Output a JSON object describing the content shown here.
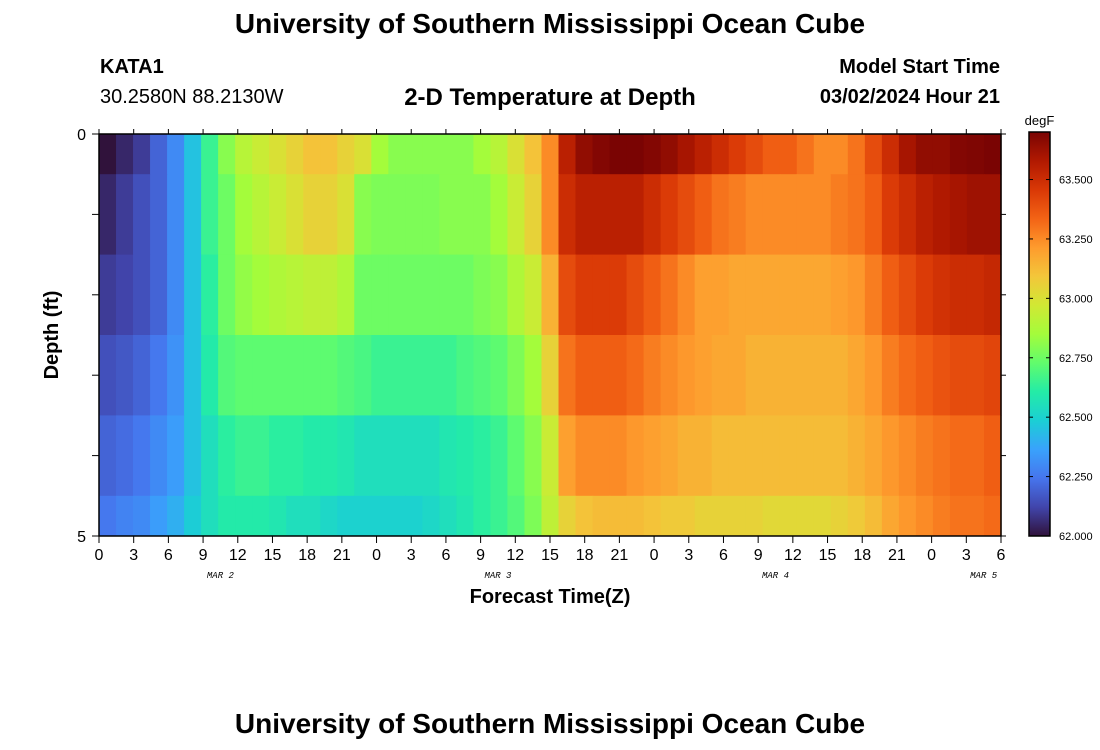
{
  "header": {
    "title": "University of Southern Mississippi Ocean Cube",
    "station": "KATA1",
    "coordinates": "30.2580N  88.2130W",
    "chart_title": "2-D Temperature at Depth",
    "model_start_label": "Model Start Time",
    "model_start_value": "03/02/2024 Hour 21"
  },
  "footer": {
    "title": "University of Southern Mississippi Ocean Cube"
  },
  "colors": {
    "scale": [
      "#30123b",
      "#4145ab",
      "#4675ed",
      "#39a2fc",
      "#1bcfd4",
      "#24eca6",
      "#61fc6c",
      "#a4fc3b",
      "#d1e834",
      "#f3c63a",
      "#fe9b2d",
      "#f36315",
      "#d93806",
      "#b11901",
      "#7a0403"
    ]
  },
  "chart_data": {
    "type": "heatmap",
    "title": "2-D Temperature at Depth",
    "xlabel": "Forecast Time(Z)",
    "ylabel": "Depth (ft)",
    "x_ticks": [
      "0",
      "3",
      "6",
      "9",
      "12",
      "15",
      "18",
      "21",
      "0",
      "3",
      "6",
      "9",
      "12",
      "15",
      "18",
      "21",
      "0",
      "3",
      "6",
      "9",
      "12",
      "15",
      "18",
      "21",
      "0",
      "3",
      "6"
    ],
    "date_labels": [
      {
        "label": "MAR 2",
        "tick_index": 3.5
      },
      {
        "label": "MAR 3",
        "tick_index": 11.5
      },
      {
        "label": "MAR 4",
        "tick_index": 19.5
      },
      {
        "label": "MAR 5",
        "tick_index": 25.5
      }
    ],
    "y_ticks": [
      "0",
      "5"
    ],
    "ylim": [
      0,
      5
    ],
    "colorbar": {
      "unit": "degF",
      "min": 62.0,
      "max": 63.7,
      "ticks": [
        "62.000",
        "62.250",
        "62.500",
        "62.750",
        "63.000",
        "63.250",
        "63.500"
      ]
    },
    "depth_rows": [
      {
        "depth_from": 0.0,
        "depth_to": 0.5,
        "hourly_values": [
          62.0,
          62.05,
          62.1,
          62.2,
          62.3,
          62.45,
          62.65,
          62.8,
          62.9,
          62.95,
          63.0,
          63.05,
          63.1,
          63.1,
          63.05,
          63.0,
          62.85,
          62.8,
          62.8,
          62.8,
          62.8,
          62.8,
          62.85,
          62.9,
          63.0,
          63.1,
          63.25,
          63.55,
          63.65,
          63.68,
          63.7,
          63.7,
          63.68,
          63.65,
          63.6,
          63.55,
          63.5,
          63.45,
          63.4,
          63.35,
          63.35,
          63.3,
          63.25,
          63.25,
          63.3,
          63.4,
          63.5,
          63.6,
          63.65,
          63.65,
          63.68,
          63.69,
          63.7
        ]
      },
      {
        "depth_from": 0.5,
        "depth_to": 1.5,
        "hourly_values": [
          62.05,
          62.1,
          62.15,
          62.2,
          62.3,
          62.45,
          62.65,
          62.75,
          62.85,
          62.9,
          62.95,
          63.0,
          63.05,
          63.05,
          63.0,
          62.8,
          62.78,
          62.78,
          62.78,
          62.78,
          62.8,
          62.8,
          62.8,
          62.85,
          62.95,
          63.05,
          63.25,
          63.5,
          63.55,
          63.55,
          63.55,
          63.55,
          63.5,
          63.45,
          63.4,
          63.35,
          63.3,
          63.28,
          63.25,
          63.25,
          63.25,
          63.25,
          63.25,
          63.28,
          63.3,
          63.35,
          63.45,
          63.5,
          63.55,
          63.58,
          63.6,
          63.62,
          63.62
        ]
      },
      {
        "depth_from": 1.5,
        "depth_to": 2.5,
        "hourly_values": [
          62.1,
          62.12,
          62.15,
          62.2,
          62.3,
          62.45,
          62.62,
          62.75,
          62.82,
          62.85,
          62.88,
          62.9,
          62.92,
          62.92,
          62.88,
          62.75,
          62.75,
          62.75,
          62.75,
          62.75,
          62.75,
          62.75,
          62.78,
          62.8,
          62.88,
          62.95,
          63.15,
          63.4,
          63.45,
          63.45,
          63.45,
          63.4,
          63.35,
          63.3,
          63.25,
          63.2,
          63.2,
          63.18,
          63.18,
          63.18,
          63.18,
          63.18,
          63.18,
          63.2,
          63.22,
          63.28,
          63.35,
          63.4,
          63.45,
          63.48,
          63.5,
          63.5,
          63.52
        ]
      },
      {
        "depth_from": 2.5,
        "depth_to": 3.5,
        "hourly_values": [
          62.15,
          62.17,
          62.2,
          62.25,
          62.32,
          62.45,
          62.6,
          62.7,
          62.72,
          62.72,
          62.72,
          62.72,
          62.72,
          62.72,
          62.7,
          62.68,
          62.65,
          62.65,
          62.65,
          62.65,
          62.65,
          62.68,
          62.7,
          62.72,
          62.78,
          62.85,
          63.05,
          63.3,
          63.35,
          63.35,
          63.35,
          63.32,
          63.28,
          63.25,
          63.22,
          63.2,
          63.18,
          63.18,
          63.15,
          63.15,
          63.15,
          63.15,
          63.15,
          63.15,
          63.18,
          63.22,
          63.28,
          63.32,
          63.35,
          63.38,
          63.4,
          63.4,
          63.42
        ]
      },
      {
        "depth_from": 3.5,
        "depth_to": 4.5,
        "hourly_values": [
          62.2,
          62.22,
          62.25,
          62.3,
          62.35,
          62.45,
          62.55,
          62.62,
          62.65,
          62.65,
          62.62,
          62.62,
          62.6,
          62.6,
          62.58,
          62.55,
          62.55,
          62.55,
          62.55,
          62.55,
          62.58,
          62.6,
          62.62,
          62.65,
          62.72,
          62.8,
          62.95,
          63.2,
          63.25,
          63.25,
          63.25,
          63.22,
          63.2,
          63.18,
          63.15,
          63.15,
          63.12,
          63.12,
          63.12,
          63.12,
          63.12,
          63.12,
          63.12,
          63.12,
          63.15,
          63.18,
          63.22,
          63.25,
          63.28,
          63.3,
          63.32,
          63.32,
          63.35
        ]
      },
      {
        "depth_from": 4.5,
        "depth_to": 5.0,
        "hourly_values": [
          62.25,
          62.28,
          62.3,
          62.35,
          62.4,
          62.48,
          62.55,
          62.6,
          62.6,
          62.6,
          62.58,
          62.55,
          62.55,
          62.52,
          62.5,
          62.5,
          62.5,
          62.5,
          62.5,
          62.52,
          62.55,
          62.58,
          62.62,
          62.65,
          62.7,
          62.78,
          62.92,
          63.05,
          63.1,
          63.12,
          63.12,
          63.12,
          63.1,
          63.08,
          63.08,
          63.05,
          63.05,
          63.05,
          63.05,
          63.03,
          63.03,
          63.03,
          63.03,
          63.05,
          63.08,
          63.12,
          63.18,
          63.22,
          63.25,
          63.28,
          63.3,
          63.3,
          63.32
        ]
      }
    ]
  }
}
